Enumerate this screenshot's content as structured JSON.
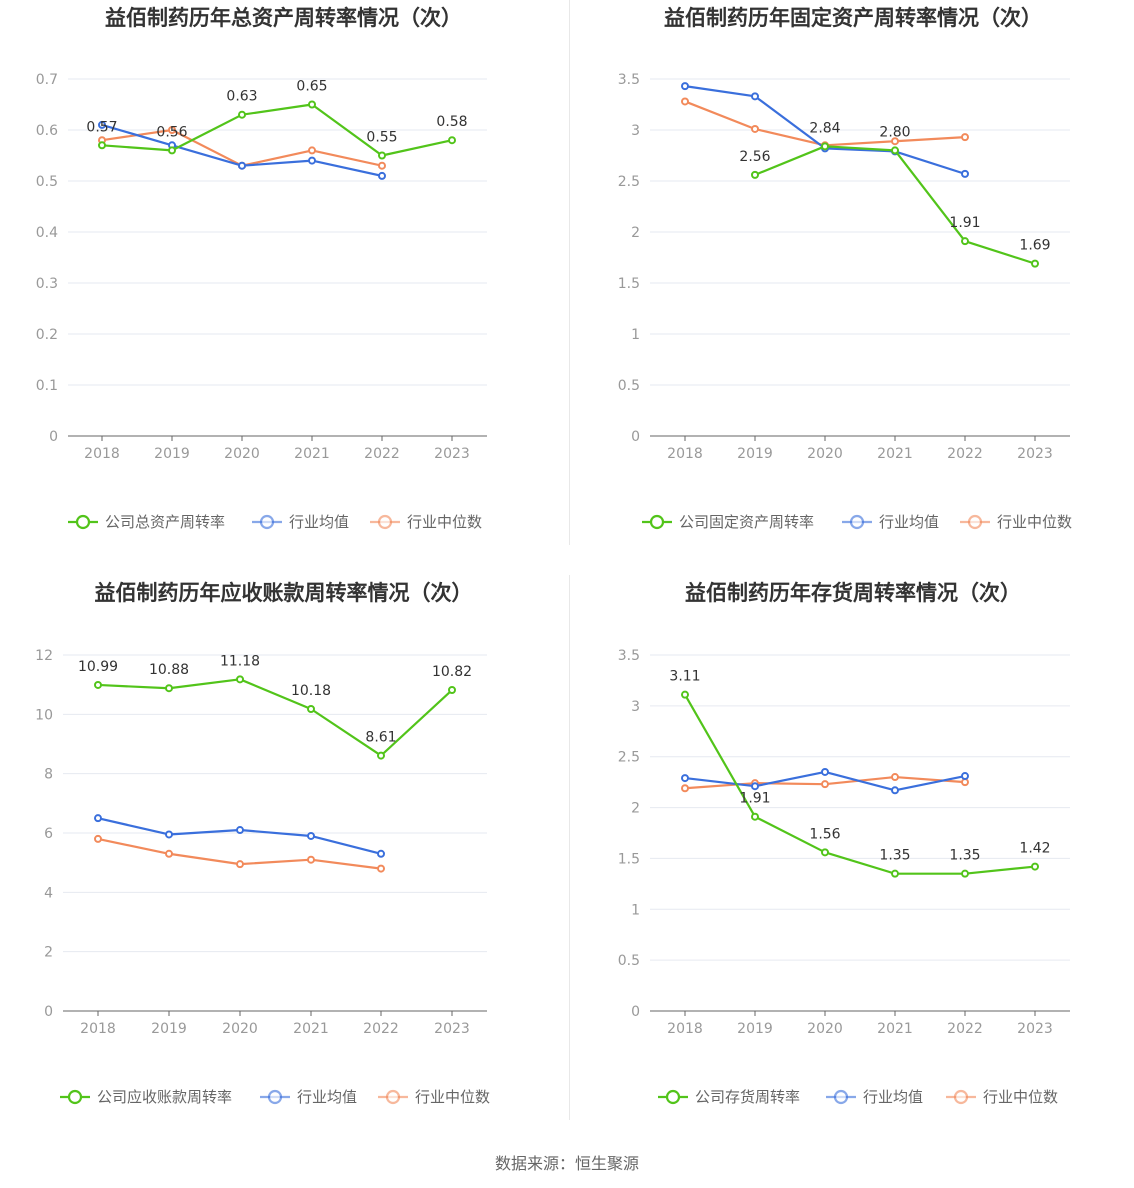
{
  "colors": {
    "company": "#52c41a",
    "avg": "#3a6fdc",
    "median": "#f28a5b",
    "grid": "#e6e9f0",
    "axis": "#666666"
  },
  "source": {
    "label": "数据来源：",
    "name": "恒生聚源"
  },
  "chart_data": [
    {
      "type": "line",
      "title": "益佰制药历年总资产周转率情况（次）",
      "categories": [
        "2018",
        "2019",
        "2020",
        "2021",
        "2022",
        "2023"
      ],
      "ylim": [
        0,
        0.7
      ],
      "yticks": [
        "0",
        "0.1",
        "0.2",
        "0.3",
        "0.4",
        "0.5",
        "0.6",
        "0.7"
      ],
      "series": [
        {
          "name": "公司总资产周转率",
          "key": "company",
          "values": [
            0.57,
            0.56,
            0.63,
            0.65,
            0.55,
            0.58
          ],
          "labels": [
            "0.57",
            "0.56",
            "0.63",
            "0.65",
            "0.55",
            "0.58"
          ]
        },
        {
          "name": "行业均值",
          "key": "avg",
          "values": [
            0.61,
            0.57,
            0.53,
            0.54,
            0.51,
            null
          ]
        },
        {
          "name": "行业中位数",
          "key": "median",
          "values": [
            0.58,
            0.6,
            0.53,
            0.56,
            0.53,
            null
          ]
        }
      ],
      "grid": true,
      "legend": "bottom"
    },
    {
      "type": "line",
      "title": "益佰制药历年固定资产周转率情况（次）",
      "categories": [
        "2018",
        "2019",
        "2020",
        "2021",
        "2022",
        "2023"
      ],
      "ylim": [
        0,
        3.5
      ],
      "yticks": [
        "0",
        "0.5",
        "1",
        "1.5",
        "2",
        "2.5",
        "3",
        "3.5"
      ],
      "series": [
        {
          "name": "公司固定资产周转率",
          "key": "company",
          "values": [
            null,
            2.56,
            2.84,
            2.8,
            1.91,
            1.69
          ],
          "labels": [
            null,
            "2.56",
            "2.84",
            "2.80",
            "1.91",
            "1.69"
          ]
        },
        {
          "name": "行业均值",
          "key": "avg",
          "values": [
            3.43,
            3.33,
            2.82,
            2.79,
            2.57,
            null
          ]
        },
        {
          "name": "行业中位数",
          "key": "median",
          "values": [
            3.28,
            3.01,
            2.85,
            2.89,
            2.93,
            null
          ]
        }
      ],
      "grid": true,
      "legend": "bottom"
    },
    {
      "type": "line",
      "title": "益佰制药历年应收账款周转率情况（次）",
      "categories": [
        "2018",
        "2019",
        "2020",
        "2021",
        "2022",
        "2023"
      ],
      "ylim": [
        0,
        12
      ],
      "yticks": [
        "0",
        "2",
        "4",
        "6",
        "8",
        "10",
        "12"
      ],
      "series": [
        {
          "name": "公司应收账款周转率",
          "key": "company",
          "values": [
            10.99,
            10.88,
            11.18,
            10.18,
            8.61,
            10.82
          ],
          "labels": [
            "10.99",
            "10.88",
            "11.18",
            "10.18",
            "8.61",
            "10.82"
          ]
        },
        {
          "name": "行业均值",
          "key": "avg",
          "values": [
            6.5,
            5.95,
            6.1,
            5.9,
            5.3,
            null
          ]
        },
        {
          "name": "行业中位数",
          "key": "median",
          "values": [
            5.8,
            5.3,
            4.95,
            5.1,
            4.8,
            null
          ]
        }
      ],
      "grid": true,
      "legend": "bottom"
    },
    {
      "type": "line",
      "title": "益佰制药历年存货周转率情况（次）",
      "categories": [
        "2018",
        "2019",
        "2020",
        "2021",
        "2022",
        "2023"
      ],
      "ylim": [
        0,
        3.5
      ],
      "yticks": [
        "0",
        "0.5",
        "1",
        "1.5",
        "2",
        "2.5",
        "3",
        "3.5"
      ],
      "series": [
        {
          "name": "公司存货周转率",
          "key": "company",
          "values": [
            3.11,
            1.91,
            1.56,
            1.35,
            1.35,
            1.42
          ],
          "labels": [
            "3.11",
            "1.91",
            "1.56",
            "1.35",
            "1.35",
            "1.42"
          ]
        },
        {
          "name": "行业均值",
          "key": "avg",
          "values": [
            2.29,
            2.21,
            2.35,
            2.17,
            2.31,
            null
          ]
        },
        {
          "name": "行业中位数",
          "key": "median",
          "values": [
            2.19,
            2.24,
            2.23,
            2.3,
            2.25,
            null
          ]
        }
      ],
      "grid": true,
      "legend": "bottom"
    }
  ]
}
